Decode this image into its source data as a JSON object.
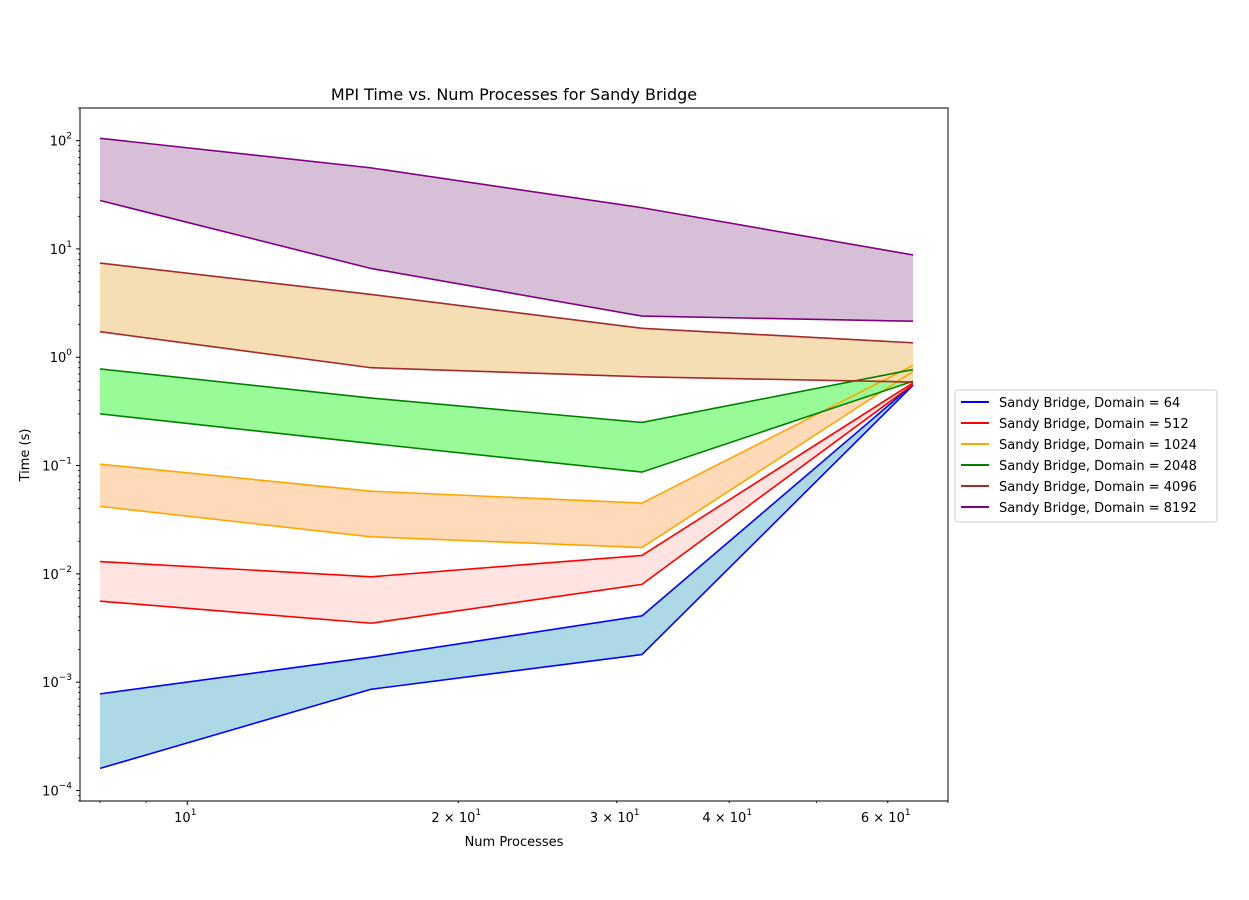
{
  "chart_data": {
    "type": "area",
    "title": "MPI Time vs. Num Processes for Sandy Bridge",
    "xlabel": "Num Processes",
    "ylabel": "Time (s)",
    "xscale": "log",
    "yscale": "log",
    "xlim": [
      7.6,
      70
    ],
    "ylim": [
      8e-05,
      200
    ],
    "x": [
      8,
      16,
      32,
      64
    ],
    "x_ticks": [
      {
        "value": 10,
        "base": "10",
        "exp": "1"
      },
      {
        "value": 20,
        "base": "2 × 10",
        "exp": "1"
      },
      {
        "value": 30,
        "base": "3 × 10",
        "exp": "1"
      },
      {
        "value": 40,
        "base": "4 × 10",
        "exp": "1"
      },
      {
        "value": 60,
        "base": "6 × 10",
        "exp": "1"
      }
    ],
    "y_ticks": [
      {
        "value": 0.0001,
        "base": "10",
        "exp": "−4"
      },
      {
        "value": 0.001,
        "base": "10",
        "exp": "−3"
      },
      {
        "value": 0.01,
        "base": "10",
        "exp": "−2"
      },
      {
        "value": 0.1,
        "base": "10",
        "exp": "−1"
      },
      {
        "value": 1,
        "base": "10",
        "exp": "0"
      },
      {
        "value": 10,
        "base": "10",
        "exp": "1"
      },
      {
        "value": 100,
        "base": "10",
        "exp": "2"
      }
    ],
    "legend_position": "outside-right",
    "series": [
      {
        "name": "Sandy Bridge, Domain = 64",
        "color": "#0000ff",
        "fill": "#add8e6",
        "upper": [
          0.00078,
          0.0017,
          0.0041,
          0.56
        ],
        "lower": [
          0.00016,
          0.00086,
          0.0018,
          0.55
        ]
      },
      {
        "name": "Sandy Bridge, Domain = 512",
        "color": "#ff0000",
        "fill": "#ffe4e1",
        "upper": [
          0.013,
          0.0094,
          0.0148,
          0.58
        ],
        "lower": [
          0.0056,
          0.0035,
          0.008,
          0.56
        ]
      },
      {
        "name": "Sandy Bridge, Domain = 1024",
        "color": "#ffa500",
        "fill": "#ffdab9",
        "upper": [
          0.103,
          0.058,
          0.045,
          0.84
        ],
        "lower": [
          0.042,
          0.022,
          0.0175,
          0.74
        ]
      },
      {
        "name": "Sandy Bridge, Domain = 2048",
        "color": "#008000",
        "fill": "#98fb98",
        "upper": [
          0.78,
          0.42,
          0.25,
          0.77
        ],
        "lower": [
          0.3,
          0.16,
          0.087,
          0.6
        ]
      },
      {
        "name": "Sandy Bridge, Domain = 4096",
        "color": "#a52a2a",
        "fill": "#f5deb3",
        "upper": [
          7.4,
          3.8,
          1.85,
          1.36
        ],
        "lower": [
          1.72,
          0.8,
          0.66,
          0.59
        ]
      },
      {
        "name": "Sandy Bridge, Domain = 8192",
        "color": "#800080",
        "fill": "#d8bfd8",
        "upper": [
          105,
          56,
          24,
          8.8
        ],
        "lower": [
          28,
          6.6,
          2.4,
          2.15
        ]
      }
    ]
  }
}
